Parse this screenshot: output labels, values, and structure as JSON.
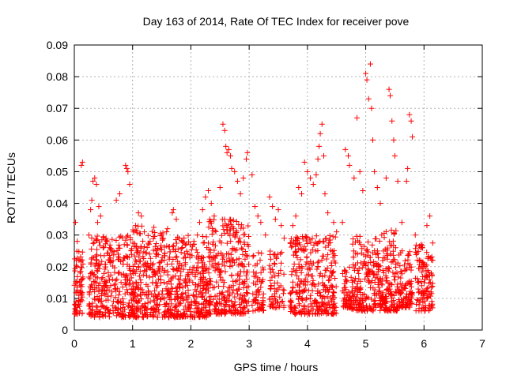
{
  "chart_data": {
    "type": "scatter",
    "title": "Day 163 of 2014, Rate Of TEC Index for receiver pove",
    "xlabel": "GPS time / hours",
    "ylabel": "ROTI / TECUs",
    "xlim": [
      0,
      7
    ],
    "ylim": [
      0,
      0.09
    ],
    "xticks": [
      0,
      1,
      2,
      3,
      4,
      5,
      6,
      7
    ],
    "yticks": [
      0,
      0.01,
      0.02,
      0.03,
      0.04,
      0.05,
      0.06,
      0.07,
      0.08,
      0.09
    ],
    "ytick_labels": [
      "0",
      "0.01",
      "0.02",
      "0.03",
      "0.04",
      "0.05",
      "0.06",
      "0.07",
      "0.08",
      "0.09"
    ],
    "grid": true,
    "marker": "+",
    "color": "#ff0000",
    "series": [
      {
        "name": "ROTI",
        "points": [
          [
            0.02,
            0.034
          ],
          [
            0.05,
            0.028
          ],
          [
            0.08,
            0.022
          ],
          [
            0.1,
            0.018
          ],
          [
            0.12,
            0.052
          ],
          [
            0.14,
            0.053
          ],
          [
            0.05,
            0.012
          ],
          [
            0.08,
            0.009
          ],
          [
            0.1,
            0.014
          ],
          [
            0.32,
            0.047
          ],
          [
            0.35,
            0.048
          ],
          [
            0.38,
            0.046
          ],
          [
            0.3,
            0.041
          ],
          [
            0.28,
            0.038
          ],
          [
            0.25,
            0.03
          ],
          [
            0.4,
            0.034
          ],
          [
            0.42,
            0.039
          ],
          [
            0.45,
            0.036
          ],
          [
            0.55,
            0.028
          ],
          [
            0.6,
            0.022
          ],
          [
            0.65,
            0.025
          ],
          [
            0.72,
            0.041
          ],
          [
            0.78,
            0.043
          ],
          [
            0.88,
            0.052
          ],
          [
            0.9,
            0.051
          ],
          [
            0.92,
            0.05
          ],
          [
            0.95,
            0.046
          ],
          [
            1.05,
            0.033
          ],
          [
            1.1,
            0.037
          ],
          [
            1.15,
            0.036
          ],
          [
            1.2,
            0.031
          ],
          [
            1.3,
            0.028
          ],
          [
            1.4,
            0.025
          ],
          [
            1.5,
            0.03
          ],
          [
            1.6,
            0.032
          ],
          [
            1.68,
            0.037
          ],
          [
            1.7,
            0.038
          ],
          [
            1.75,
            0.035
          ],
          [
            1.85,
            0.028
          ],
          [
            1.95,
            0.024
          ],
          [
            2.05,
            0.027
          ],
          [
            2.15,
            0.034
          ],
          [
            2.2,
            0.038
          ],
          [
            2.25,
            0.042
          ],
          [
            2.3,
            0.044
          ],
          [
            2.35,
            0.04
          ],
          [
            2.4,
            0.036
          ],
          [
            2.5,
            0.045
          ],
          [
            2.55,
            0.065
          ],
          [
            2.58,
            0.063
          ],
          [
            2.6,
            0.058
          ],
          [
            2.62,
            0.056
          ],
          [
            2.65,
            0.057
          ],
          [
            2.68,
            0.055
          ],
          [
            2.7,
            0.051
          ],
          [
            2.75,
            0.05
          ],
          [
            2.8,
            0.047
          ],
          [
            2.85,
            0.043
          ],
          [
            2.9,
            0.048
          ],
          [
            2.95,
            0.054
          ],
          [
            2.97,
            0.056
          ],
          [
            3.05,
            0.049
          ],
          [
            3.1,
            0.039
          ],
          [
            3.15,
            0.036
          ],
          [
            3.2,
            0.034
          ],
          [
            3.28,
            0.03
          ],
          [
            3.35,
            0.042
          ],
          [
            3.4,
            0.039
          ],
          [
            3.45,
            0.035
          ],
          [
            3.5,
            0.038
          ],
          [
            3.55,
            0.033
          ],
          [
            3.6,
            0.029
          ],
          [
            3.75,
            0.033
          ],
          [
            3.8,
            0.036
          ],
          [
            3.85,
            0.045
          ],
          [
            3.9,
            0.043
          ],
          [
            3.95,
            0.053
          ],
          [
            4.0,
            0.05
          ],
          [
            4.05,
            0.048
          ],
          [
            4.1,
            0.046
          ],
          [
            4.15,
            0.049
          ],
          [
            4.18,
            0.054
          ],
          [
            4.2,
            0.058
          ],
          [
            4.22,
            0.062
          ],
          [
            4.25,
            0.065
          ],
          [
            4.28,
            0.055
          ],
          [
            4.3,
            0.043
          ],
          [
            4.35,
            0.037
          ],
          [
            4.45,
            0.034
          ],
          [
            4.5,
            0.031
          ],
          [
            4.6,
            0.034
          ],
          [
            4.65,
            0.057
          ],
          [
            4.7,
            0.055
          ],
          [
            4.72,
            0.052
          ],
          [
            4.8,
            0.048
          ],
          [
            4.85,
            0.067
          ],
          [
            4.9,
            0.05
          ],
          [
            4.95,
            0.044
          ],
          [
            5.0,
            0.081
          ],
          [
            5.02,
            0.079
          ],
          [
            5.05,
            0.073
          ],
          [
            5.08,
            0.084
          ],
          [
            5.1,
            0.07
          ],
          [
            5.12,
            0.06
          ],
          [
            5.15,
            0.05
          ],
          [
            5.2,
            0.045
          ],
          [
            5.25,
            0.04
          ],
          [
            5.35,
            0.048
          ],
          [
            5.4,
            0.076
          ],
          [
            5.42,
            0.074
          ],
          [
            5.45,
            0.066
          ],
          [
            5.48,
            0.06
          ],
          [
            5.5,
            0.055
          ],
          [
            5.55,
            0.047
          ],
          [
            5.62,
            0.034
          ],
          [
            5.7,
            0.047
          ],
          [
            5.72,
            0.051
          ],
          [
            5.75,
            0.068
          ],
          [
            5.78,
            0.066
          ],
          [
            5.8,
            0.061
          ],
          [
            5.85,
            0.03
          ],
          [
            5.95,
            0.027
          ],
          [
            6.05,
            0.033
          ],
          [
            6.1,
            0.036
          ],
          [
            6.15,
            0.022
          ],
          [
            6.12,
            0.012
          ]
        ],
        "dense_bands": [
          {
            "x": [
              0.0,
              0.15
            ],
            "y": [
              0.005,
              0.025
            ],
            "n": 70
          },
          {
            "x": [
              0.25,
              1.0
            ],
            "y": [
              0.004,
              0.03
            ],
            "n": 320
          },
          {
            "x": [
              1.0,
              1.6
            ],
            "y": [
              0.004,
              0.033
            ],
            "n": 280
          },
          {
            "x": [
              1.6,
              2.3
            ],
            "y": [
              0.004,
              0.03
            ],
            "n": 330
          },
          {
            "x": [
              2.3,
              3.0
            ],
            "y": [
              0.005,
              0.035
            ],
            "n": 320
          },
          {
            "x": [
              3.05,
              3.25
            ],
            "y": [
              0.006,
              0.025
            ],
            "n": 60
          },
          {
            "x": [
              3.35,
              3.6
            ],
            "y": [
              0.007,
              0.025
            ],
            "n": 70
          },
          {
            "x": [
              3.7,
              4.5
            ],
            "y": [
              0.005,
              0.03
            ],
            "n": 320
          },
          {
            "x": [
              4.6,
              4.75
            ],
            "y": [
              0.007,
              0.02
            ],
            "n": 50
          },
          {
            "x": [
              4.75,
              5.2
            ],
            "y": [
              0.006,
              0.03
            ],
            "n": 180
          },
          {
            "x": [
              5.2,
              5.55
            ],
            "y": [
              0.006,
              0.032
            ],
            "n": 170
          },
          {
            "x": [
              5.55,
              5.8
            ],
            "y": [
              0.007,
              0.025
            ],
            "n": 100
          },
          {
            "x": [
              5.85,
              6.15
            ],
            "y": [
              0.006,
              0.028
            ],
            "n": 120
          }
        ]
      }
    ]
  }
}
